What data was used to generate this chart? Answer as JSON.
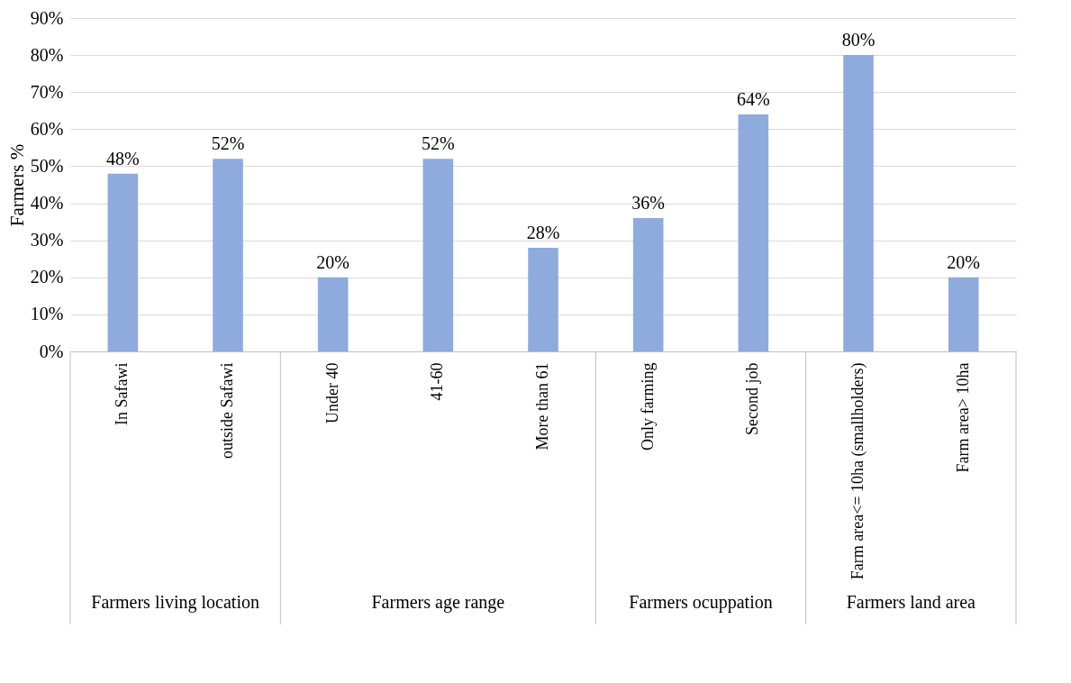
{
  "chart_data": {
    "type": "bar",
    "ylabel": "Farmers %",
    "categories": [
      "In Safawi",
      "outside Safawi",
      "Under 40",
      "41-60",
      "More than 61",
      "Only farming",
      "Second job",
      "Farm area<= 10ha (smallholders)",
      "Farm area> 10ha"
    ],
    "values": [
      48,
      52,
      20,
      52,
      28,
      36,
      64,
      80,
      20
    ],
    "value_labels": [
      "48%",
      "52%",
      "20%",
      "52%",
      "28%",
      "36%",
      "64%",
      "80%",
      "20%"
    ],
    "color": "#8faadc",
    "ylim": [
      0,
      90
    ],
    "yticks": [
      {
        "value": 0,
        "label": "0%"
      },
      {
        "value": 10,
        "label": "10%"
      },
      {
        "value": 20,
        "label": "20%"
      },
      {
        "value": 30,
        "label": "30%"
      },
      {
        "value": 40,
        "label": "40%"
      },
      {
        "value": 50,
        "label": "50%"
      },
      {
        "value": 60,
        "label": "60%"
      },
      {
        "value": 70,
        "label": "70%"
      },
      {
        "value": 80,
        "label": "80%"
      },
      {
        "value": 90,
        "label": "90%"
      }
    ],
    "grid": "y",
    "annotations": [
      "Farmers living location",
      "Farmers age range",
      "Farmers ocuppation",
      "Farmers land area"
    ]
  }
}
